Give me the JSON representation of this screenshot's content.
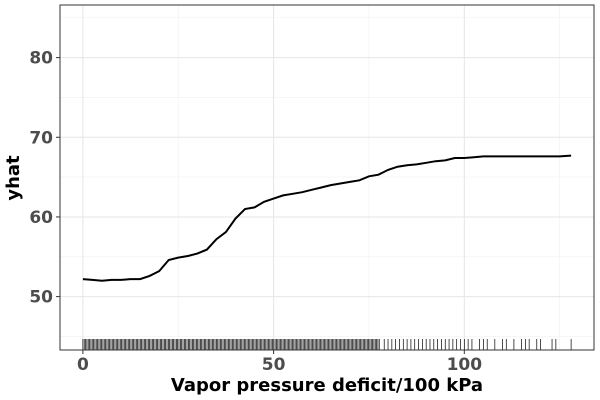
{
  "chart_data": {
    "type": "line",
    "title": "",
    "xlabel": "Vapor pressure deficit/100 kPa",
    "ylabel": "yhat",
    "xlim": [
      -6,
      134
    ],
    "ylim": [
      43.3,
      86.6
    ],
    "x_ticks": [
      0,
      50,
      100
    ],
    "x_tick_labels": [
      "0",
      "50",
      "100"
    ],
    "y_ticks": [
      50,
      60,
      70,
      80
    ],
    "y_tick_labels": [
      "50",
      "60",
      "70",
      "80"
    ],
    "grid": true,
    "legend": "none",
    "series": [
      {
        "color": "#000000",
        "x": [
          0,
          2.5,
          5,
          7.5,
          10,
          12.5,
          15,
          17.5,
          20,
          22.5,
          25,
          27.5,
          30,
          32.5,
          35,
          37.5,
          40,
          42.5,
          45,
          47.5,
          50,
          52.5,
          55,
          57.5,
          60,
          62.5,
          65,
          67.5,
          70,
          72.5,
          75,
          77.5,
          80,
          82.5,
          85,
          87.5,
          90,
          92.5,
          95,
          97.5,
          100,
          102.5,
          105,
          107.5,
          110,
          112.5,
          115,
          117.5,
          120,
          122.5,
          125,
          128
        ],
        "y": [
          52.2,
          52.1,
          52.0,
          52.1,
          52.1,
          52.2,
          52.2,
          52.6,
          53.2,
          54.6,
          54.9,
          55.1,
          55.4,
          55.9,
          57.2,
          58.1,
          59.8,
          61.0,
          61.2,
          61.9,
          62.3,
          62.7,
          62.9,
          63.1,
          63.4,
          63.7,
          64.0,
          64.2,
          64.4,
          64.6,
          65.1,
          65.3,
          65.9,
          66.3,
          66.5,
          66.6,
          66.8,
          67.0,
          67.1,
          67.4,
          67.4,
          67.5,
          67.6,
          67.6,
          67.6,
          67.6,
          67.6,
          67.6,
          67.6,
          67.6,
          67.6,
          67.7
        ]
      }
    ],
    "rug": {
      "dense_ranges": [
        [
          0,
          78
        ]
      ],
      "sparse_x": [
        79,
        80,
        81,
        82,
        83,
        84,
        85,
        86,
        87,
        88,
        89,
        90,
        91,
        92,
        93,
        94,
        95,
        96,
        97,
        98,
        99,
        100,
        101,
        102,
        104,
        105,
        106,
        108,
        110,
        111,
        113,
        115,
        116,
        117,
        119,
        120,
        123,
        124,
        128
      ]
    }
  }
}
